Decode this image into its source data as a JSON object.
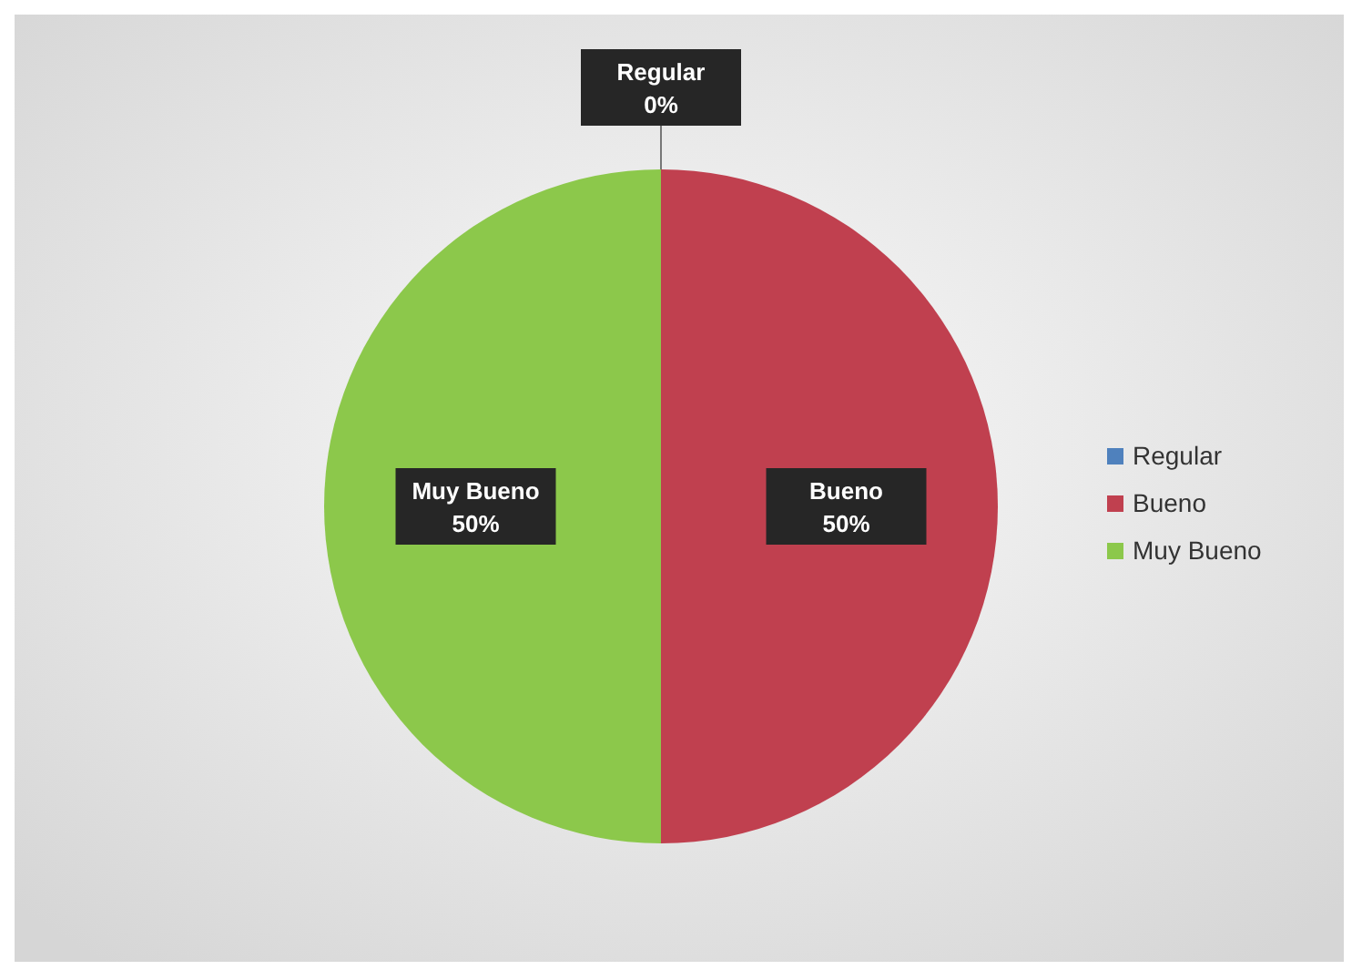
{
  "chart_data": {
    "type": "pie",
    "categories": [
      "Regular",
      "Bueno",
      "Muy Bueno"
    ],
    "values": [
      0,
      50,
      50
    ],
    "colors": [
      "#4f81bd",
      "#c0404f",
      "#8cc84b"
    ],
    "value_labels": [
      "0%",
      "50%",
      "50%"
    ],
    "data_labels": true,
    "legend": "right"
  }
}
